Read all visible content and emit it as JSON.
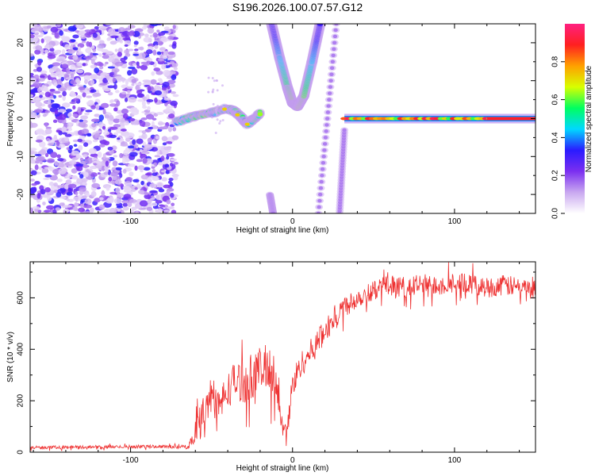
{
  "title": "S196.2026.100.07.57.G12",
  "chart_data": [
    {
      "type": "heatmap",
      "xlabel": "Height of straight line (km)",
      "ylabel": "Frequency (Hz)",
      "xlim": [
        -162,
        150
      ],
      "ylim": [
        -25,
        25
      ],
      "xticks": [
        -100,
        0,
        100
      ],
      "xtick_labels": [
        "-100",
        "0",
        "100"
      ],
      "yticks": [
        -20,
        -10,
        0,
        10,
        20
      ],
      "ytick_labels": [
        "-20",
        "-10",
        "0",
        "10",
        "20"
      ],
      "colorbar": {
        "label": "Normalized spectral amplitude",
        "range": [
          0,
          1
        ],
        "ticks": [
          0.0,
          0.2,
          0.4,
          0.6,
          0.8
        ],
        "tick_labels": [
          "0.0",
          "0.2",
          "0.4",
          "0.6",
          "0.8"
        ],
        "colors": [
          "#ffffff",
          "#c9a8f0",
          "#7b2ff0",
          "#2a1bff",
          "#00d8ff",
          "#00ff60",
          "#d8ff00",
          "#ffa000",
          "#ff2020",
          "#ff2080"
        ]
      },
      "features": [
        {
          "name": "scattered noise",
          "x_range": [
            -162,
            -72
          ],
          "freq_range": [
            -25,
            25
          ],
          "amplitude": 0.2
        },
        {
          "name": "ridge near 0 Hz",
          "points": [
            [
              -72,
              -1
            ],
            [
              -60,
              0.8
            ],
            [
              -50,
              1.5
            ],
            [
              -42,
              2.5
            ],
            [
              -36,
              2
            ],
            [
              -32,
              0.5
            ],
            [
              -28,
              -1.5
            ],
            [
              -24,
              0
            ],
            [
              -20,
              1.5
            ]
          ],
          "amplitude": 0.5
        },
        {
          "name": "parabolic arc",
          "points": [
            [
              -13,
              25
            ],
            [
              -8,
              16
            ],
            [
              -3,
              8
            ],
            [
              0,
              4
            ],
            [
              3,
              3
            ],
            [
              7,
              6
            ],
            [
              12,
              15
            ],
            [
              17,
              25
            ]
          ],
          "amplitude": 0.35
        },
        {
          "name": "diagonal line 1",
          "points": [
            [
              16,
              -25
            ],
            [
              27,
              25
            ]
          ],
          "amplitude": 0.15
        },
        {
          "name": "diagonal line 2",
          "points": [
            [
              29,
              -25
            ],
            [
              32,
              -3
            ]
          ],
          "amplitude": 0.15
        },
        {
          "name": "left fragment",
          "points": [
            [
              -14,
              -20
            ],
            [
              -12,
              -25
            ]
          ],
          "amplitude": 0.15
        },
        {
          "name": "strong band at 0 Hz",
          "x_range": [
            32,
            150
          ],
          "freq": 0,
          "amplitude": 0.85
        }
      ]
    },
    {
      "type": "line",
      "xlabel": "Height of straight line (km)",
      "ylabel": "SNR (10 * v/v)",
      "xlim": [
        -162,
        150
      ],
      "ylim": [
        0,
        740
      ],
      "xticks": [
        -100,
        0,
        100
      ],
      "xtick_labels": [
        "-100",
        "0",
        "100"
      ],
      "yticks": [
        0,
        200,
        400,
        600
      ],
      "ytick_labels": [
        "0",
        "200",
        "400",
        "600"
      ],
      "series": [
        {
          "name": "SNR",
          "color": "#ee3030",
          "x": [
            -162,
            -140,
            -120,
            -100,
            -80,
            -64,
            -60,
            -55,
            -50,
            -45,
            -40,
            -35,
            -30,
            -25,
            -20,
            -15,
            -10,
            -8,
            -6,
            -4,
            -2,
            0,
            5,
            10,
            15,
            20,
            30,
            40,
            50,
            60,
            70,
            80,
            90,
            100,
            110,
            120,
            130,
            140,
            150
          ],
          "y": [
            18,
            20,
            20,
            22,
            22,
            20,
            90,
            160,
            220,
            180,
            240,
            280,
            270,
            300,
            320,
            330,
            300,
            160,
            90,
            80,
            150,
            260,
            340,
            380,
            420,
            470,
            560,
            600,
            630,
            650,
            640,
            650,
            650,
            660,
            650,
            640,
            650,
            640,
            630
          ],
          "noise": [
            6,
            6,
            6,
            6,
            6,
            8,
            50,
            70,
            70,
            80,
            70,
            80,
            80,
            90,
            90,
            90,
            90,
            40,
            30,
            30,
            60,
            60,
            50,
            50,
            50,
            50,
            45,
            40,
            40,
            40,
            40,
            45,
            40,
            40,
            40,
            40,
            40,
            40,
            40
          ]
        }
      ]
    }
  ]
}
